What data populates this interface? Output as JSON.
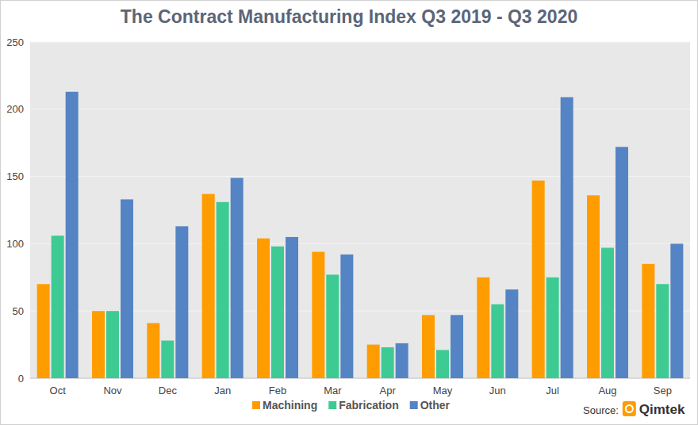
{
  "chart_data": {
    "type": "bar",
    "title": "The Contract Manufacturing Index Q3 2019 - Q3 2020",
    "categories": [
      "Oct",
      "Nov",
      "Dec",
      "Jan",
      "Feb",
      "Mar",
      "Apr",
      "May",
      "Jun",
      "Jul",
      "Aug",
      "Sep"
    ],
    "series": [
      {
        "name": "Machining",
        "color": "#ff9d00",
        "values": [
          70,
          50,
          41,
          137,
          104,
          94,
          25,
          47,
          75,
          147,
          136,
          85
        ]
      },
      {
        "name": "Fabrication",
        "color": "#3ecb93",
        "values": [
          106,
          50,
          28,
          131,
          98,
          77,
          23,
          21,
          55,
          75,
          97,
          70
        ]
      },
      {
        "name": "Other",
        "color": "#5584c4",
        "values": [
          213,
          133,
          113,
          149,
          105,
          92,
          26,
          47,
          66,
          209,
          172,
          100
        ]
      }
    ],
    "ylim": [
      0,
      250
    ],
    "yticks": [
      0,
      50,
      100,
      150,
      200,
      250
    ],
    "grid": true,
    "legend": "bottom",
    "annotations": [
      "Source:",
      "Qimtek"
    ]
  }
}
